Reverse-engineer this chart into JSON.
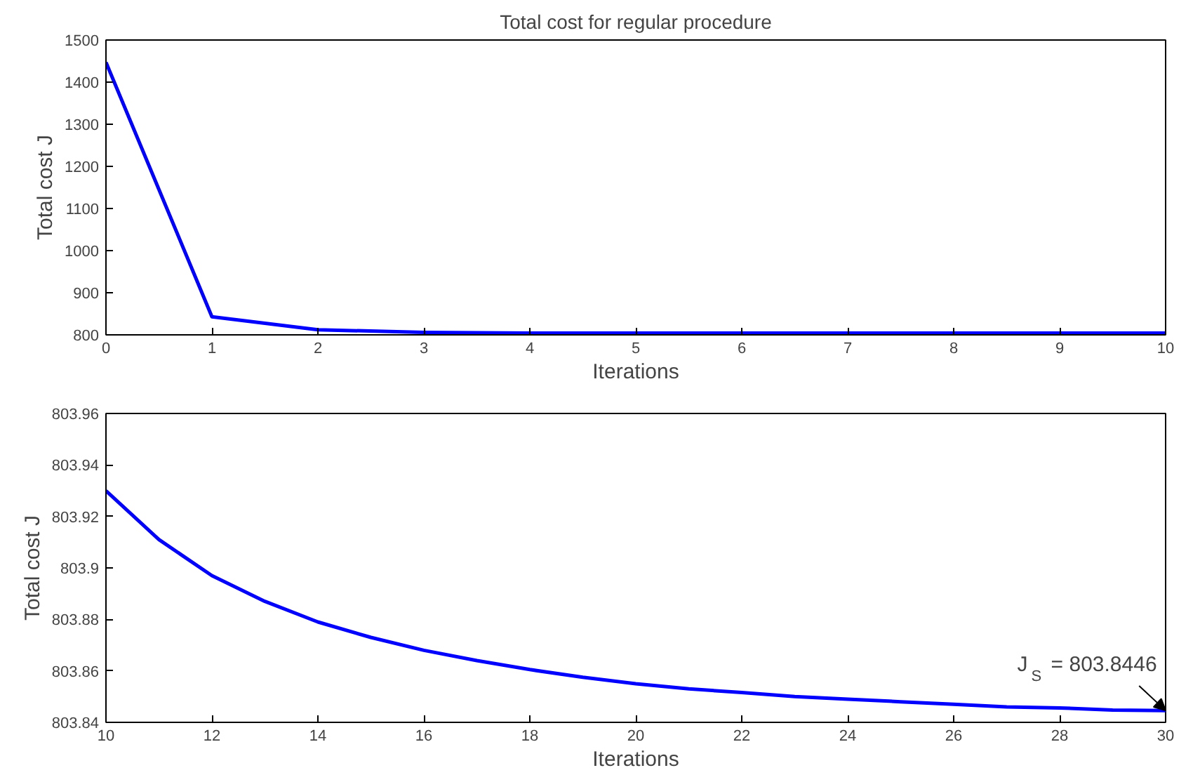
{
  "chart_data": [
    {
      "type": "line",
      "title": "Total cost for regular procedure",
      "xlabel": "Iterations",
      "ylabel": "Total cost J",
      "x": [
        0,
        1,
        2,
        3,
        4,
        5,
        6,
        7,
        8,
        9,
        10
      ],
      "series": [
        {
          "color": "#0000ff",
          "values": [
            1447,
            843,
            812,
            806,
            804,
            804,
            804,
            804,
            804,
            804,
            804
          ]
        }
      ],
      "xlim": [
        0,
        10
      ],
      "xticks": [
        0,
        1,
        2,
        3,
        4,
        5,
        6,
        7,
        8,
        9,
        10
      ],
      "ylim": [
        800,
        1500
      ],
      "yticks": [
        800,
        900,
        1000,
        1100,
        1200,
        1300,
        1400,
        1500
      ],
      "grid": false,
      "marker": "none",
      "line_style": "solid"
    },
    {
      "type": "line",
      "xlabel": "Iterations",
      "ylabel": "Total cost J",
      "x": [
        10,
        11,
        12,
        13,
        14,
        15,
        16,
        17,
        18,
        19,
        20,
        21,
        22,
        23,
        24,
        25,
        26,
        27,
        28,
        29,
        30
      ],
      "series": [
        {
          "color": "#0000ff",
          "values": [
            803.93,
            803.911,
            803.897,
            803.887,
            803.879,
            803.873,
            803.868,
            803.864,
            803.8605,
            803.8575,
            803.855,
            803.853,
            803.8516,
            803.85,
            803.849,
            803.848,
            803.847,
            803.846,
            803.8456,
            803.8448,
            803.8446
          ]
        }
      ],
      "xlim": [
        10,
        30
      ],
      "xticks": [
        10,
        12,
        14,
        16,
        18,
        20,
        22,
        24,
        26,
        28,
        30
      ],
      "ylim": [
        803.84,
        803.96
      ],
      "yticks": [
        {
          "value": 803.84,
          "label": "803.84"
        },
        {
          "value": 803.86,
          "label": "803.86"
        },
        {
          "value": 803.88,
          "label": "803.88"
        },
        {
          "value": 803.9,
          "label": "803.9"
        },
        {
          "value": 803.92,
          "label": "803.92"
        },
        {
          "value": 803.94,
          "label": "803.94"
        },
        {
          "value": 803.96,
          "label": "803.96"
        }
      ],
      "grid": false,
      "marker": "none",
      "line_style": "solid",
      "annotations": [
        {
          "text": "J$_{S}$ = 803.8446",
          "x": 30,
          "y": 803.8446
        }
      ]
    }
  ]
}
